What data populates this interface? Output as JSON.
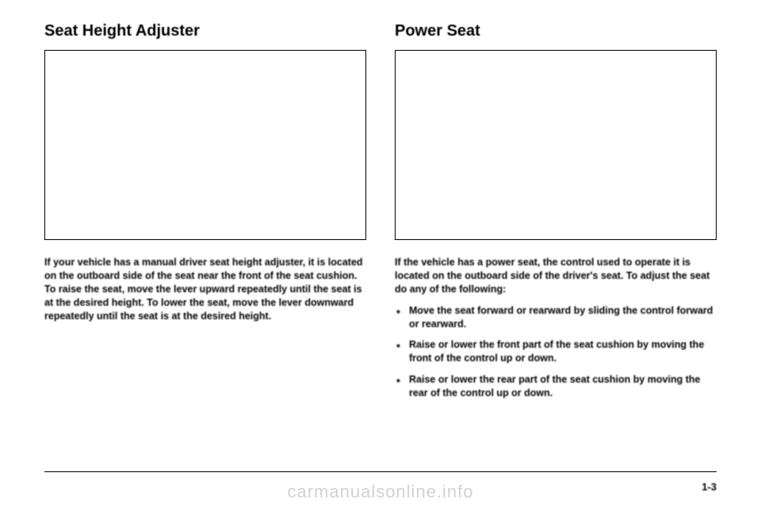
{
  "left": {
    "heading": "Seat Height Adjuster",
    "para": "If your vehicle has a manual driver seat height adjuster, it is located on the outboard side of the seat near the front of the seat cushion. To raise the seat, move the lever upward repeatedly until the seat is at the desired height. To lower the seat, move the lever downward repeatedly until the seat is at the desired height."
  },
  "right": {
    "heading": "Power Seat",
    "para": "If the vehicle has a power seat, the control used to operate it is located on the outboard side of the driver's seat. To adjust the seat do any of the following:",
    "bullets": [
      "Move the seat forward or rearward by sliding the control forward or rearward.",
      "Raise or lower the front part of the seat cushion by moving the front of the control up or down.",
      "Raise or lower the rear part of the seat cushion by moving the rear of the control up or down."
    ]
  },
  "page_number": "1-3",
  "watermark": "carmanualsonline.info"
}
